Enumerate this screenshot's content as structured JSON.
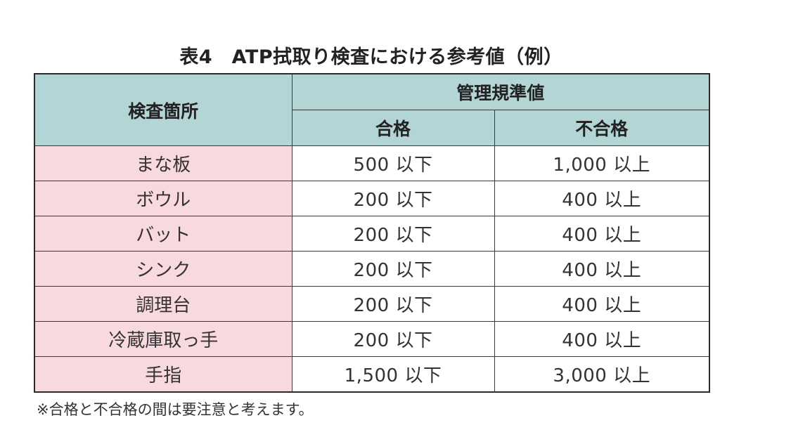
{
  "title": "表4　ATP拭取り検査における参考値（例）",
  "table": {
    "col_location_header": "検査箇所",
    "col_standard_header": "管理規準値",
    "col_pass_header": "合格",
    "col_fail_header": "不合格",
    "rows": [
      {
        "location": "まな板",
        "pass": "500 以下",
        "fail": "1,000 以上"
      },
      {
        "location": "ボウル",
        "pass": "200 以下",
        "fail": "400 以上"
      },
      {
        "location": "バット",
        "pass": "200 以下",
        "fail": "400 以上"
      },
      {
        "location": "シンク",
        "pass": "200 以下",
        "fail": "400 以上"
      },
      {
        "location": "調理台",
        "pass": "200 以下",
        "fail": "400 以上"
      },
      {
        "location": "冷蔵庫取っ手",
        "pass": "200 以下",
        "fail": "400 以上"
      },
      {
        "location": "手指",
        "pass": "1,500 以下",
        "fail": "3,000 以上"
      }
    ]
  },
  "note": "※合格と不合格の間は要注意と考えます。",
  "colors": {
    "header_bg": "#b3d5d5",
    "location_bg": "#f8d9e0",
    "border": "#2a2a2a"
  }
}
